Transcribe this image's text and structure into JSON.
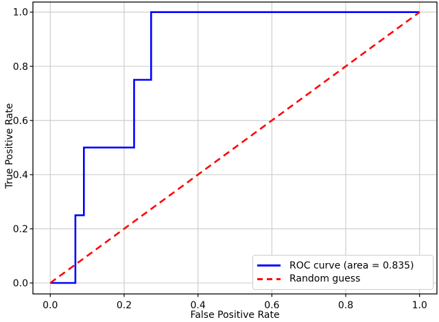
{
  "figure": {
    "background": "#ffffff"
  },
  "chart_data": {
    "type": "line",
    "title": "",
    "xlabel": "False Positive Rate",
    "ylabel": "True Positive Rate",
    "x_ticks": [
      0.0,
      0.2,
      0.4,
      0.6,
      0.8,
      1.0
    ],
    "y_ticks": [
      0.0,
      0.2,
      0.4,
      0.6,
      0.8,
      1.0
    ],
    "xlim": [
      -0.047,
      1.047
    ],
    "ylim": [
      -0.04,
      1.037
    ],
    "grid": true,
    "legend_position": "lower right",
    "auc": 0.835,
    "series": [
      {
        "name": "ROC curve (area = 0.835)",
        "kind": "step",
        "color": "#0000ff",
        "style": "solid",
        "points": [
          [
            0.0,
            0.0
          ],
          [
            0.068,
            0.0
          ],
          [
            0.068,
            0.25
          ],
          [
            0.091,
            0.25
          ],
          [
            0.091,
            0.5
          ],
          [
            0.227,
            0.5
          ],
          [
            0.227,
            0.75
          ],
          [
            0.273,
            0.75
          ],
          [
            0.273,
            1.0
          ],
          [
            1.0,
            1.0
          ]
        ]
      },
      {
        "name": "Random guess",
        "kind": "diagonal",
        "color": "#ff0000",
        "style": "dashed",
        "points": [
          [
            0.0,
            0.0
          ],
          [
            1.0,
            1.0
          ]
        ]
      }
    ],
    "colors": {
      "grid": "#c9c9c9",
      "spine": "#000000",
      "tick_label": "#000000",
      "legend_border": "#cccccc",
      "legend_bg": "#ffffff"
    }
  },
  "legend": {
    "items": [
      {
        "label": "ROC curve (area = 0.835)",
        "color": "#0000ff",
        "style": "solid"
      },
      {
        "label": "Random guess",
        "color": "#ff0000",
        "style": "dashed"
      }
    ]
  }
}
